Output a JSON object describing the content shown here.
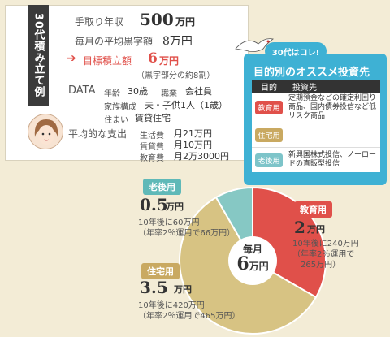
{
  "card": {
    "tab_label": "30代積み立て例",
    "income_label": "手取り年収",
    "income_value": "500",
    "income_unit": "万円",
    "surplus_label": "毎月の平均黒字額",
    "surplus_value": "8万円",
    "target_label": "目標積立額",
    "target_value": "6",
    "target_unit": "万円",
    "target_note": "（黒字部分の約8割）",
    "data_heading": "DATA",
    "age_label": "年齢",
    "age_value": "30歳",
    "job_label": "職業",
    "job_value": "会社員",
    "family_label": "家族構成",
    "family_value": "夫・子供1人（1歳）",
    "house_label": "住まい",
    "house_value": "賃貸住宅",
    "expense_heading": "平均的な支出",
    "expenses": [
      {
        "label": "生活費",
        "value": "月21万円"
      },
      {
        "label": "賃貸費",
        "value": "月10万円"
      },
      {
        "label": "教育費",
        "value": "月2万3000円"
      }
    ]
  },
  "recommend": {
    "pill": "30代はコレ!",
    "title": "目的別のオススメ投資先",
    "col1": "目的",
    "col2": "投資先",
    "rows": [
      {
        "tag": "教育用",
        "color": "#e0504a",
        "text": "定期預金などの確定利回り商品、国内債券投信など低リスク商品"
      },
      {
        "tag": "住宅用",
        "color": "#c9a961",
        "text": ""
      },
      {
        "tag": "老後用",
        "color": "#7dc4c9",
        "text": "新興国株式投信、ノーロードの直販型投信"
      }
    ]
  },
  "chart_data": {
    "type": "pie",
    "center_label": "毎月",
    "center_value": "6",
    "center_unit": "万円",
    "slices": [
      {
        "name": "教育用",
        "value": 2,
        "color": "#e0504a"
      },
      {
        "name": "住宅用",
        "value": 3.5,
        "color": "#d7c383"
      },
      {
        "name": "老後用",
        "value": 0.5,
        "color": "#86c8c4"
      }
    ]
  },
  "callouts": {
    "edu": {
      "tag": "教育用",
      "amount": "2",
      "unit": "万円",
      "note1": "10年後に240万円",
      "note2": "（年率2％運用で",
      "note3": "265万円）"
    },
    "house": {
      "tag": "住宅用",
      "amount": "3.5",
      "unit": "万円",
      "note1": "10年後に420万円",
      "note2": "（年率2％運用で465万円）"
    },
    "old": {
      "tag": "老後用",
      "amount": "0.5",
      "unit": "万円",
      "note1": "10年後に60万円",
      "note2": "（年率2％運用で66万円）"
    }
  }
}
